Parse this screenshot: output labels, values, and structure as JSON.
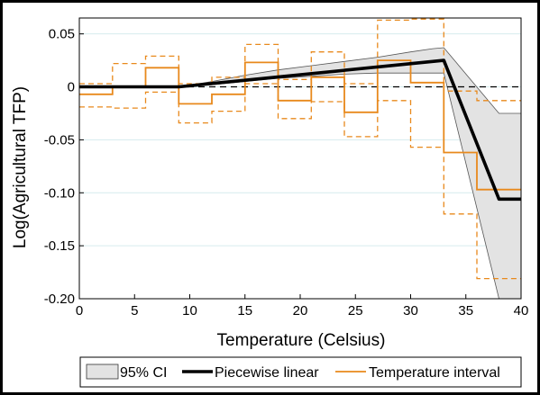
{
  "chart_data": {
    "type": "line",
    "xlabel": "Temperature (Celsius)",
    "ylabel": "Log(Agricultural TFP)",
    "xlim": [
      0,
      40
    ],
    "ylim": [
      -0.2,
      0.065
    ],
    "x_ticks": [
      0,
      5,
      10,
      15,
      20,
      25,
      30,
      35,
      40
    ],
    "y_ticks": [
      0.05,
      0,
      -0.05,
      -0.1,
      -0.15,
      -0.2
    ],
    "x_tick_labels": [
      "0",
      "5",
      "10",
      "15",
      "20",
      "25",
      "30",
      "35",
      "40"
    ],
    "y_tick_labels": [
      "0.05",
      "0",
      "-0.05",
      "-0.10",
      "-0.15",
      "-0.20"
    ],
    "grid": "horizontal",
    "zero_reference_line": "dashed",
    "legend": {
      "placement": "bottom",
      "entries": [
        {
          "label": "95% CI",
          "style": "gray-patch"
        },
        {
          "label": "Piecewise linear",
          "style": "thick-black-line"
        },
        {
          "label": "Temperature interval",
          "style": "orange-line"
        }
      ]
    },
    "colors": {
      "ci_fill": "#e3e3e3",
      "ci_edge": "#555555",
      "piecewise": "#000000",
      "interval": "#e8891c",
      "grid": "#d6ecee"
    },
    "piecewise_linear": {
      "x": [
        0,
        9,
        33,
        38,
        40
      ],
      "y": [
        0,
        0,
        0.025,
        -0.106,
        -0.106
      ]
    },
    "ci_95": {
      "x": [
        0,
        9,
        12,
        15,
        18,
        21,
        24,
        27,
        30,
        32,
        33,
        38,
        40
      ],
      "upper": [
        0,
        0,
        0.005,
        0.011,
        0.016,
        0.02,
        0.024,
        0.028,
        0.033,
        0.036,
        0.037,
        -0.025,
        -0.025
      ],
      "lower": [
        0,
        0,
        0.002,
        0.005,
        0.008,
        0.01,
        0.012,
        0.013,
        0.013,
        0.013,
        0.013,
        -0.2,
        -0.2
      ]
    },
    "temperature_interval": {
      "edges": [
        0,
        3,
        6,
        9,
        12,
        15,
        18,
        21,
        24,
        27,
        30,
        33,
        36,
        40
      ],
      "estimate": [
        -0.007,
        0,
        0.018,
        -0.016,
        -0.007,
        0.023,
        -0.013,
        0.009,
        -0.024,
        0.025,
        0.004,
        -0.062,
        -0.097
      ],
      "ci_upper": [
        0.003,
        0.022,
        0.029,
        0.003,
        0.009,
        0.04,
        0.007,
        0.033,
        0.003,
        0.063,
        0.064,
        -0.004,
        -0.013
      ],
      "ci_lower": [
        -0.019,
        -0.02,
        -0.005,
        -0.034,
        -0.023,
        0.003,
        -0.03,
        -0.014,
        -0.047,
        -0.013,
        -0.057,
        -0.12,
        -0.181
      ]
    }
  }
}
